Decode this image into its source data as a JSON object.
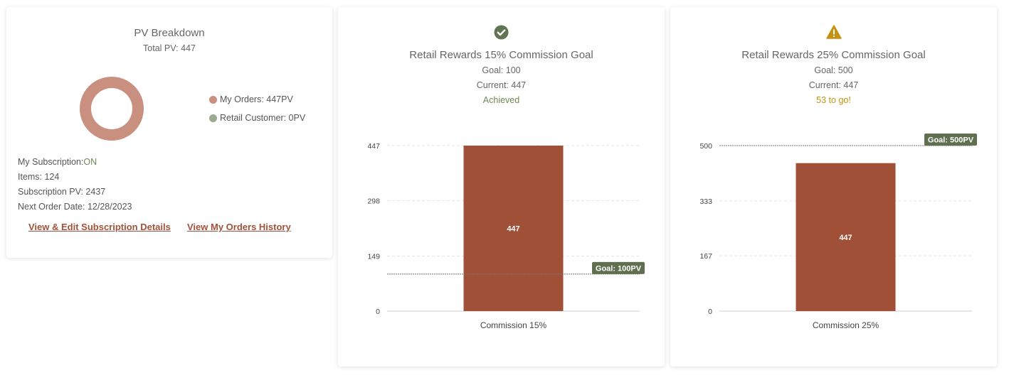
{
  "pv_breakdown": {
    "title": "PV Breakdown",
    "total_pv": "Total PV: 447",
    "legend": [
      {
        "label": "My Orders: 447PV",
        "color": "#c98f7f"
      },
      {
        "label": "Retail Customer: 0PV",
        "color": "#9aab92"
      }
    ],
    "chart_data": {
      "type": "pie",
      "categories": [
        "My Orders",
        "Retail Customer"
      ],
      "values": [
        447,
        0
      ]
    },
    "subscription_label": "My Subscription:",
    "subscription_status": "ON",
    "items": "Items: 124",
    "subscription_pv": "Subscription PV: 2437",
    "next_order_date": "Next Order Date: 12/28/2023",
    "link_edit_subscription": "View & Edit Subscription Details",
    "link_orders_history": "View My Orders History"
  },
  "goal15": {
    "icon": "check-circle-icon",
    "title": "Retail Rewards 15% Commission Goal",
    "goal": "Goal: 100",
    "current": "Current: 447",
    "status": "Achieved",
    "status_color": "#6d8a55",
    "chart_data": {
      "type": "bar",
      "categories": [
        "Commission 15%"
      ],
      "values": [
        447
      ],
      "yticks": [
        0,
        149,
        298,
        447
      ],
      "ylim": [
        0,
        447
      ],
      "goal_line": 100,
      "goal_label": "Goal: 100PV",
      "bar_label": "447"
    }
  },
  "goal25": {
    "icon": "warning-icon",
    "title": "Retail Rewards 25% Commission Goal",
    "goal": "Goal: 500",
    "current": "Current: 447",
    "status": "53 to go!",
    "status_color": "#c4920f",
    "chart_data": {
      "type": "bar",
      "categories": [
        "Commission 25%"
      ],
      "values": [
        447
      ],
      "yticks": [
        0,
        167,
        333,
        500
      ],
      "ylim": [
        0,
        500
      ],
      "goal_line": 500,
      "goal_label": "Goal: 500PV",
      "bar_label": "447"
    }
  },
  "colors": {
    "bar": "#a05036",
    "goal_tag": "#5f6f4f",
    "link": "#a0513a"
  }
}
